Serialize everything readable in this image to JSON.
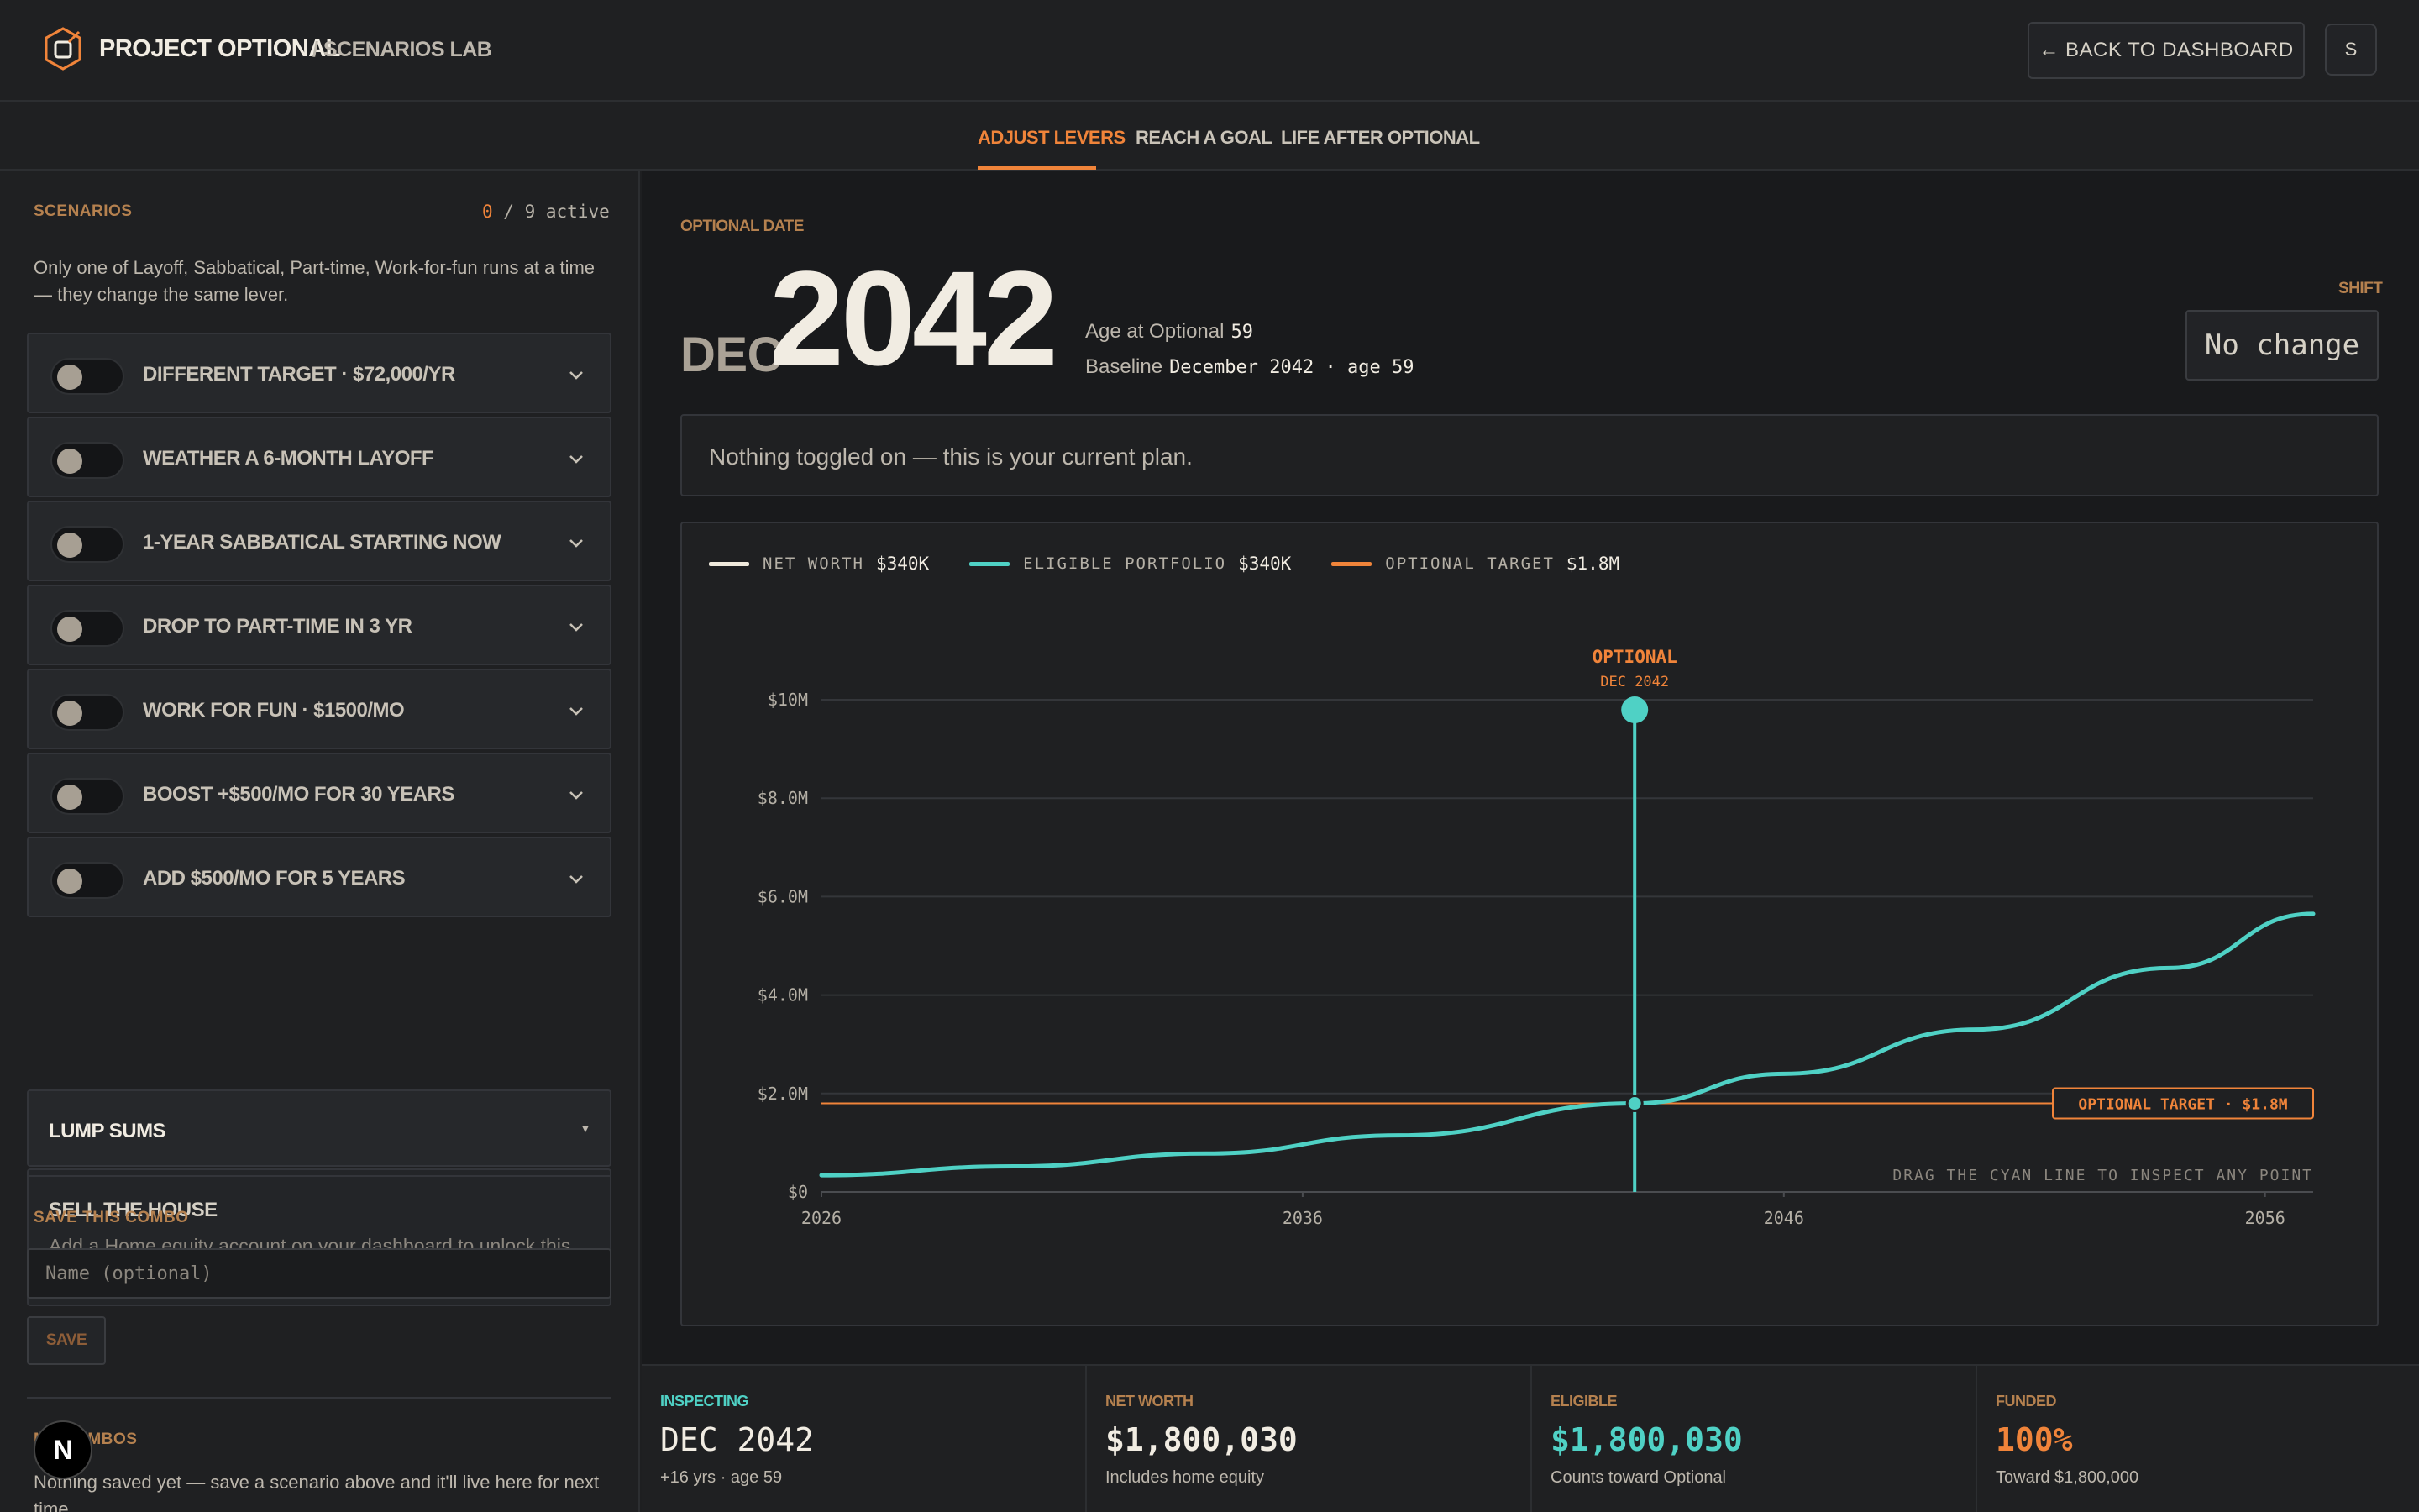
{
  "header": {
    "brand": "PROJECT OPTIONAL",
    "crumb": "/ SCENARIOS LAB",
    "back_label": "← BACK TO DASHBOARD",
    "avatar_initial": "S"
  },
  "tabs": [
    {
      "label": "ADJUST LEVERS",
      "active": true
    },
    {
      "label": "REACH A GOAL",
      "active": false
    },
    {
      "label": "LIFE AFTER OPTIONAL",
      "active": false
    }
  ],
  "sidebar": {
    "scenarios_label": "SCENARIOS",
    "active_count": "0",
    "active_total": " / 9 active",
    "note": "Only one of Layoff, Sabbatical, Part-time, Work-for-fun runs at a time — they change the same lever.",
    "levers": [
      {
        "label": "DIFFERENT TARGET · $72,000/YR",
        "on": false
      },
      {
        "label": "WEATHER A 6-MONTH LAYOFF",
        "on": false
      },
      {
        "label": "1-YEAR SABBATICAL STARTING NOW",
        "on": false
      },
      {
        "label": "DROP TO PART-TIME IN 3 YR",
        "on": false
      },
      {
        "label": "WORK FOR FUN · $1500/MO",
        "on": false
      },
      {
        "label": "BOOST +$500/MO FOR 30 YEARS",
        "on": false
      },
      {
        "label": "ADD $500/MO FOR 5 YEARS",
        "on": false
      }
    ],
    "lump_sums_label": "LUMP SUMS",
    "lump_caret": "▼",
    "house_title": "SELL THE HOUSE",
    "house_note": "Add a Home equity account on your dashboard to unlock this.",
    "save_combo_label": "SAVE THIS COMBO",
    "name_placeholder": "Name (optional)",
    "save_label": "SAVE",
    "combos_label": "MY COMBOS",
    "combos_note": "Nothing saved yet — save a scenario above and it'll live here for next time.",
    "next_badge": "N"
  },
  "main": {
    "optional_date_label": "OPTIONAL DATE",
    "month": "DEC",
    "year": "2042",
    "age_label": "Age at Optional",
    "age_value": "59",
    "baseline_label": "Baseline",
    "baseline_value": "December 2042 · age 59",
    "shift_label": "SHIFT",
    "shift_value": "No change",
    "plan_text": "Nothing toggled on — this is your current plan."
  },
  "legend": [
    {
      "name": "NET WORTH",
      "value": "$340K",
      "color": "#efe9dc"
    },
    {
      "name": "ELIGIBLE PORTFOLIO",
      "value": "$340K",
      "color": "#4fd1c5"
    },
    {
      "name": "OPTIONAL TARGET",
      "value": "$1.8M",
      "color": "#f0843a"
    }
  ],
  "chart_data": {
    "type": "line",
    "x_range": [
      2026,
      2057
    ],
    "ylim": [
      0,
      10000000
    ],
    "y_ticks": [
      "$0",
      "$2.0M",
      "$4.0M",
      "$6.0M",
      "$8.0M",
      "$10M"
    ],
    "x_ticks": [
      "2026",
      "2036",
      "2046",
      "2056"
    ],
    "series": [
      {
        "name": "ELIGIBLE PORTFOLIO",
        "color": "#4fd1c5",
        "x": [
          2026,
          2030,
          2034,
          2038,
          2042.9,
          2046,
          2050,
          2054,
          2057
        ],
        "y": [
          340000,
          520000,
          780000,
          1150000,
          1800030,
          2400000,
          3300000,
          4550000,
          5650000
        ]
      }
    ],
    "target": {
      "label": "OPTIONAL TARGET · $1.8M",
      "value": 1800000
    },
    "marker": {
      "x": 2042.9,
      "title": "OPTIONAL",
      "subtitle": "DEC 2042",
      "value": 1800030
    },
    "hint": "DRAG THE CYAN LINE TO INSPECT ANY POINT",
    "grid": true
  },
  "stats": [
    {
      "label": "INSPECTING",
      "value": "DEC 2042",
      "sub": "+16 yrs · age 59",
      "label_color": "#4fd1c5",
      "value_color": "#f1ece2"
    },
    {
      "label": "NET WORTH",
      "value": "$1,800,030",
      "sub": "Includes home equity",
      "label_color": "#b5814f",
      "value_color": "#f1ece2"
    },
    {
      "label": "ELIGIBLE",
      "value": "$1,800,030",
      "sub": "Counts toward Optional",
      "label_color": "#b5814f",
      "value_color": "#4fd1c5"
    },
    {
      "label": "FUNDED",
      "value": "100%",
      "sub": "Toward $1,800,000",
      "label_color": "#b5814f",
      "value_color": "#f0843a"
    }
  ]
}
